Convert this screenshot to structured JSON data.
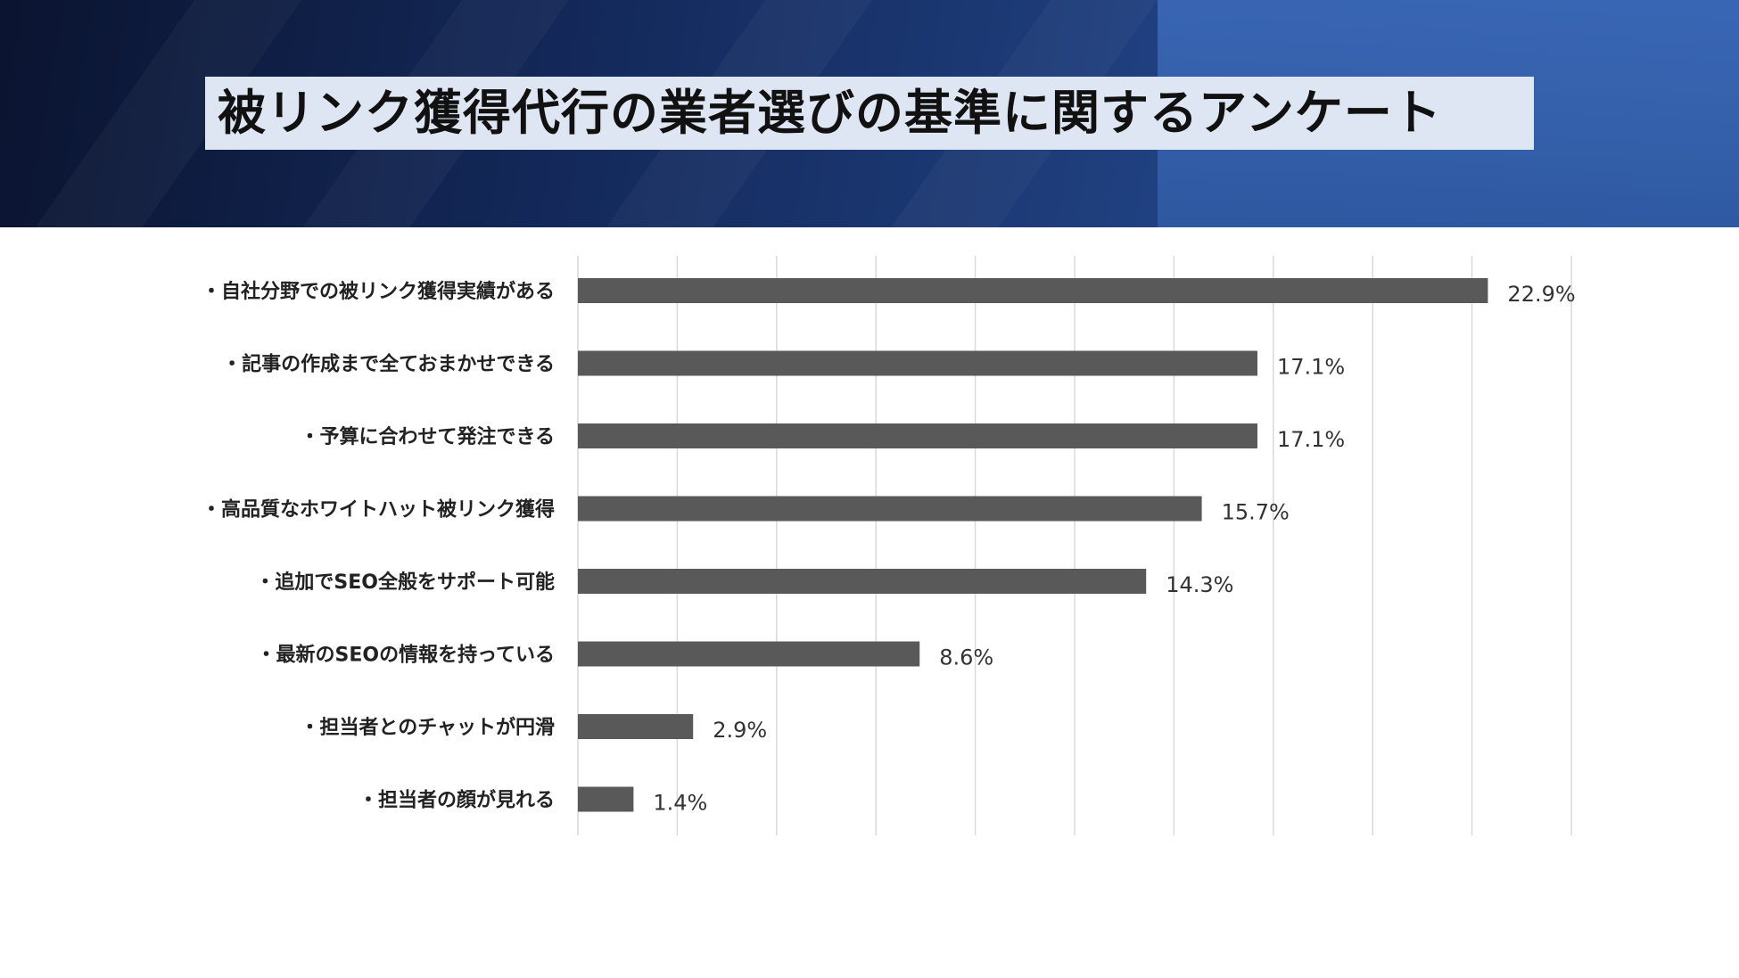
{
  "title": "被リンク獲得代行の業者選びの基準に関するアンケート",
  "colors": {
    "bar": "#595959",
    "grid": "#d9d9d9"
  },
  "chart_data": {
    "type": "bar",
    "orientation": "horizontal",
    "categories": [
      "・自社分野での被リンク獲得実績がある",
      "・記事の作成まで全ておまかせできる",
      "・予算に合わせて発注できる",
      "・高品質なホワイトハット被リンク獲得",
      "・追加でSEO全般をサポート可能",
      "・最新のSEOの情報を持っている",
      "・担当者とのチャットが円滑",
      "・担当者の顔が見れる"
    ],
    "values": [
      22.9,
      17.1,
      17.1,
      15.7,
      14.3,
      8.6,
      2.9,
      1.4
    ],
    "value_labels": [
      "22.9%",
      "17.1%",
      "17.1%",
      "15.7%",
      "14.3%",
      "8.6%",
      "2.9%",
      "1.4%"
    ],
    "xlim": [
      0,
      25
    ],
    "grid": true,
    "legend": "none"
  }
}
